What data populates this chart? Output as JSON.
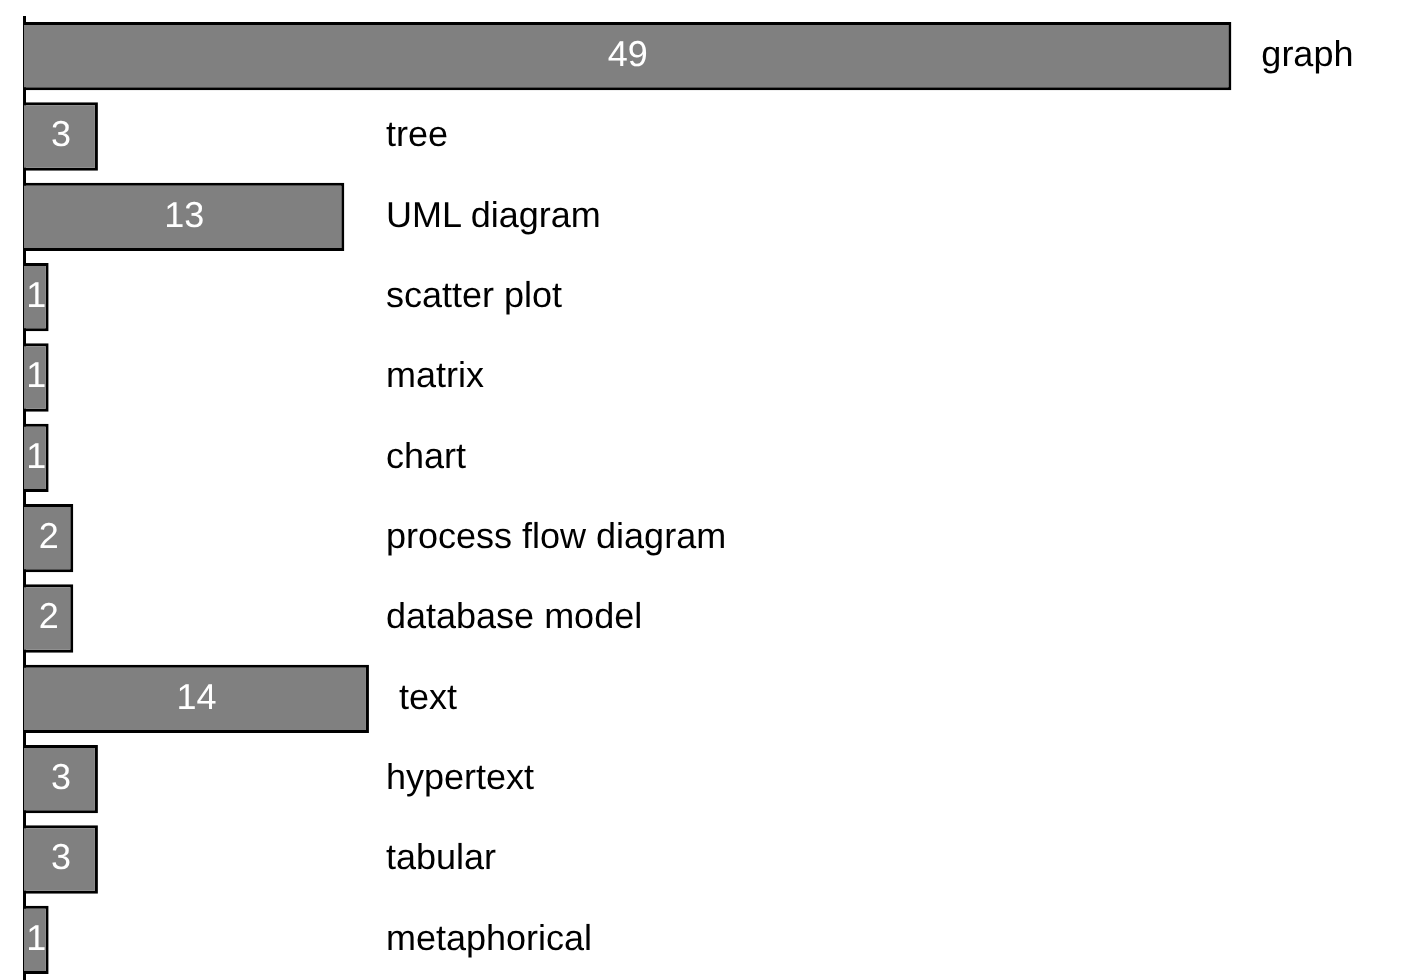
{
  "chart_data": {
    "type": "bar",
    "orientation": "horizontal",
    "data_labels": true,
    "grid": false,
    "legend": false,
    "categories": [
      "graph",
      "tree",
      "UML diagram",
      "scatter plot",
      "matrix",
      "chart",
      "process flow diagram",
      "database model",
      "text",
      "hypertext",
      "tabular",
      "metaphorical"
    ],
    "series": [
      {
        "color": "#808080",
        "values": [
          49,
          3,
          13,
          1,
          1,
          1,
          2,
          2,
          14,
          3,
          3,
          1
        ]
      }
    ]
  }
}
